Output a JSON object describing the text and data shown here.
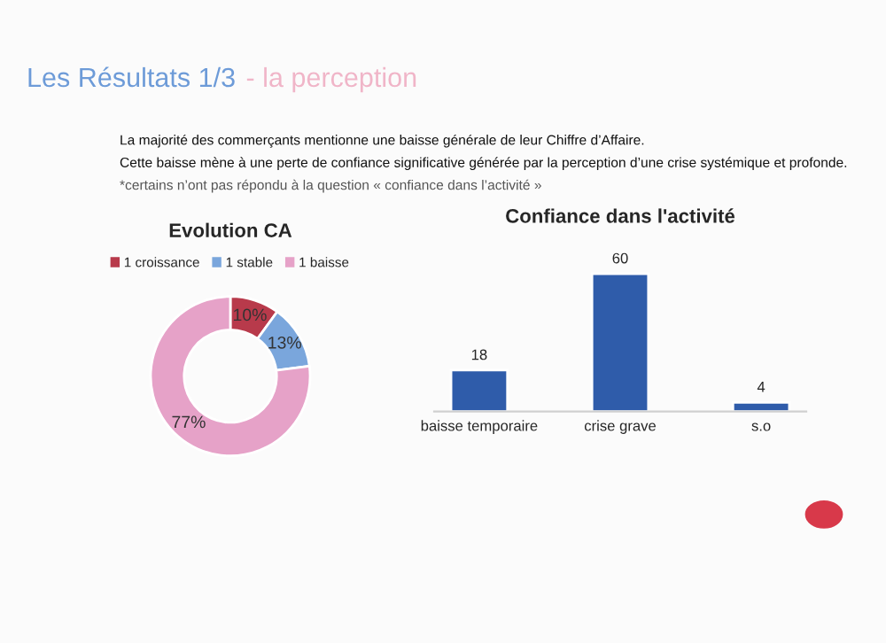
{
  "chart_data": [
    {
      "type": "donut",
      "title": "Evolution CA",
      "categories": [
        "1 croissance",
        "1 stable",
        "1 baisse"
      ],
      "values": [
        10,
        13,
        77
      ],
      "colors": [
        "#b83a4b",
        "#7aa6dc",
        "#e6a2c8"
      ],
      "value_labels": [
        "10%",
        "13%",
        "77%"
      ],
      "legend": "top",
      "annotations": [
        "Les Résultats 1/3",
        "- la perception",
        "La majorité des commerçants mentionne une baisse générale de leur Chiffre d’Affaire.",
        "Cette baisse mène à une perte de confiance significative générée par la perception d’une crise systémique et profonde.",
        "*certains n’ont pas répondu à la question « confiance dans l’activité »"
      ]
    },
    {
      "type": "bar",
      "title": "Confiance dans l'activité",
      "categories": [
        "baisse temporaire",
        "crise grave",
        "s.o"
      ],
      "values": [
        18,
        60,
        4
      ],
      "color": "#2f5caa",
      "data_labels": true
    }
  ]
}
